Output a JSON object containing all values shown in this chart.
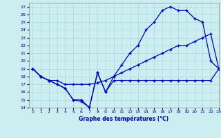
{
  "title": "Graphe des températures (°C)",
  "bg_color": "#cceef0",
  "grid_color": "#aadddd",
  "line_color": "#0000bb",
  "xlim": [
    -0.5,
    23
  ],
  "ylim": [
    14,
    27.5
  ],
  "xticks": [
    0,
    1,
    2,
    3,
    4,
    5,
    6,
    7,
    8,
    9,
    10,
    11,
    12,
    13,
    14,
    15,
    16,
    17,
    18,
    19,
    20,
    21,
    22,
    23
  ],
  "yticks": [
    14,
    15,
    16,
    17,
    18,
    19,
    20,
    21,
    22,
    23,
    24,
    25,
    26,
    27
  ],
  "line1_x": [
    0,
    1,
    2,
    3,
    4,
    5,
    6,
    7,
    8,
    9,
    10,
    11,
    12,
    13,
    14,
    15,
    16,
    17,
    18,
    19,
    20,
    21,
    22,
    23
  ],
  "line1_y": [
    19,
    18,
    17.5,
    17,
    16.5,
    15,
    14.8,
    14,
    18.5,
    16,
    17.5,
    17.5,
    17.5,
    17.5,
    17.5,
    17.5,
    17.5,
    17.5,
    17.5,
    17.5,
    17.5,
    17.5,
    17.5,
    19
  ],
  "line2_x": [
    0,
    1,
    2,
    3,
    4,
    5,
    6,
    7,
    8,
    9,
    10,
    11,
    12,
    13,
    14,
    15,
    16,
    17,
    18,
    19,
    20,
    21,
    22,
    23
  ],
  "line2_y": [
    19,
    18,
    17.5,
    17.5,
    17,
    17,
    17,
    17,
    17.2,
    17.5,
    18,
    18.5,
    19,
    19.5,
    20,
    20.5,
    21,
    21.5,
    22,
    22,
    22.5,
    23,
    23.5,
    19
  ],
  "line3_x": [
    0,
    1,
    2,
    3,
    4,
    5,
    6,
    7,
    8,
    9,
    10,
    11,
    12,
    13,
    14,
    15,
    16,
    17,
    18,
    19,
    20,
    21,
    22,
    23
  ],
  "line3_y": [
    19,
    18,
    17.5,
    17,
    16.5,
    15,
    15,
    14,
    18.5,
    16,
    18,
    19.5,
    21,
    22,
    24,
    25,
    26.5,
    27,
    26.5,
    26.5,
    25.5,
    25,
    20,
    19
  ]
}
